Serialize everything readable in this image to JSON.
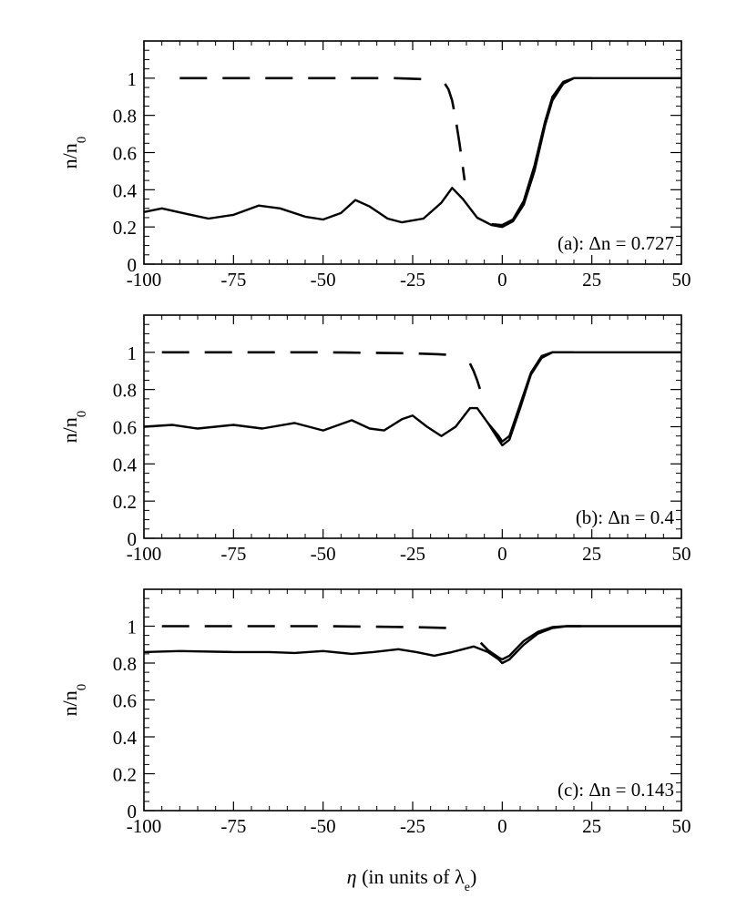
{
  "chart_data": [
    {
      "type": "line",
      "panel_label": "(a):",
      "delta_label": "Δn = 0.727",
      "ylabel": {
        "main": "n/n",
        "sub": "0"
      },
      "xlim": [
        -100,
        50
      ],
      "ylim": [
        0,
        1.2
      ],
      "xticks": [
        -100,
        -75,
        -50,
        -25,
        0,
        25,
        50
      ],
      "xtick_labels": [
        "-100",
        "-75",
        "-50",
        "-25",
        "0",
        "25",
        "50"
      ],
      "yticks": [
        0,
        0.2,
        0.4,
        0.6,
        0.8,
        1
      ],
      "ytick_labels": [
        "0",
        "0.2",
        "0.4",
        "0.6",
        "0.8",
        "1"
      ],
      "grid": false,
      "series": [
        {
          "style": "dashed",
          "segments": [
            [
              [
                -90,
                1.0
              ],
              [
                -50,
                1.0
              ],
              [
                -30,
                1.0
              ],
              [
                -22,
                0.995
              ],
              [
                -19,
                0.99
              ]
            ],
            [
              [
                -16,
                0.97
              ],
              [
                -15,
                0.94
              ],
              [
                -14,
                0.88
              ],
              [
                -13,
                0.78
              ],
              [
                -12,
                0.66
              ],
              [
                -11,
                0.52
              ],
              [
                -10.5,
                0.45
              ]
            ]
          ]
        },
        {
          "style": "solid",
          "points": [
            [
              -100,
              0.28
            ],
            [
              -95,
              0.3
            ],
            [
              -88,
              0.27
            ],
            [
              -82,
              0.245
            ],
            [
              -75,
              0.265
            ],
            [
              -68,
              0.315
            ],
            [
              -62,
              0.3
            ],
            [
              -55,
              0.255
            ],
            [
              -50,
              0.24
            ],
            [
              -45,
              0.275
            ],
            [
              -41,
              0.345
            ],
            [
              -37,
              0.31
            ],
            [
              -32,
              0.245
            ],
            [
              -28,
              0.225
            ],
            [
              -22,
              0.245
            ],
            [
              -17,
              0.33
            ],
            [
              -14,
              0.41
            ],
            [
              -11,
              0.35
            ],
            [
              -7,
              0.25
            ],
            [
              -3,
              0.21
            ],
            [
              0,
              0.2
            ],
            [
              3,
              0.23
            ],
            [
              6,
              0.32
            ],
            [
              9,
              0.5
            ],
            [
              12,
              0.75
            ],
            [
              14,
              0.88
            ],
            [
              17,
              0.97
            ],
            [
              20,
              1.0
            ],
            [
              30,
              1.0
            ],
            [
              50,
              1.0
            ]
          ]
        },
        {
          "style": "solid",
          "points": [
            [
              -3,
              0.215
            ],
            [
              0,
              0.21
            ],
            [
              3,
              0.24
            ],
            [
              6,
              0.34
            ],
            [
              9,
              0.53
            ],
            [
              12,
              0.77
            ],
            [
              14,
              0.9
            ],
            [
              17,
              0.98
            ],
            [
              20,
              1.0
            ],
            [
              25,
              1.0
            ]
          ]
        }
      ]
    },
    {
      "type": "line",
      "panel_label": "(b):",
      "delta_label": "Δn = 0.4",
      "ylabel": {
        "main": "n/n",
        "sub": "0"
      },
      "xlim": [
        -100,
        50
      ],
      "ylim": [
        0,
        1.2
      ],
      "xticks": [
        -100,
        -75,
        -50,
        -25,
        0,
        25,
        50
      ],
      "xtick_labels": [
        "-100",
        "-75",
        "-50",
        "-25",
        "0",
        "25",
        "50"
      ],
      "yticks": [
        0,
        0.2,
        0.4,
        0.6,
        0.8,
        1
      ],
      "ytick_labels": [
        "0",
        "0.2",
        "0.4",
        "0.6",
        "0.8",
        "1"
      ],
      "grid": false,
      "series": [
        {
          "style": "dashed",
          "segments": [
            [
              [
                -95,
                1.0
              ],
              [
                -50,
                1.0
              ],
              [
                -25,
                0.995
              ],
              [
                -18,
                0.99
              ],
              [
                -14,
                0.985
              ]
            ],
            [
              [
                -9,
                0.94
              ],
              [
                -8,
                0.9
              ],
              [
                -7,
                0.85
              ],
              [
                -6,
                0.79
              ]
            ]
          ]
        },
        {
          "style": "solid",
          "points": [
            [
              -100,
              0.6
            ],
            [
              -92,
              0.61
            ],
            [
              -85,
              0.59
            ],
            [
              -75,
              0.61
            ],
            [
              -67,
              0.59
            ],
            [
              -58,
              0.62
            ],
            [
              -50,
              0.58
            ],
            [
              -42,
              0.635
            ],
            [
              -37,
              0.59
            ],
            [
              -33,
              0.58
            ],
            [
              -28,
              0.64
            ],
            [
              -25,
              0.66
            ],
            [
              -21,
              0.6
            ],
            [
              -17,
              0.55
            ],
            [
              -13,
              0.6
            ],
            [
              -9,
              0.7
            ],
            [
              -7,
              0.7
            ],
            [
              -4,
              0.62
            ],
            [
              -1,
              0.53
            ],
            [
              0,
              0.5
            ],
            [
              2,
              0.53
            ],
            [
              5,
              0.7
            ],
            [
              8,
              0.88
            ],
            [
              11,
              0.97
            ],
            [
              14,
              1.0
            ],
            [
              30,
              1.0
            ],
            [
              50,
              1.0
            ]
          ]
        },
        {
          "style": "solid",
          "points": [
            [
              -4,
              0.62
            ],
            [
              -1,
              0.55
            ],
            [
              0,
              0.52
            ],
            [
              2,
              0.55
            ],
            [
              5,
              0.72
            ],
            [
              8,
              0.89
            ],
            [
              11,
              0.98
            ],
            [
              14,
              1.0
            ],
            [
              20,
              1.0
            ]
          ]
        }
      ]
    },
    {
      "type": "line",
      "panel_label": "(c):",
      "delta_label": "Δn = 0.143",
      "ylabel": {
        "main": "n/n",
        "sub": "0"
      },
      "xlim": [
        -100,
        50
      ],
      "ylim": [
        0,
        1.2
      ],
      "xticks": [
        -100,
        -75,
        -50,
        -25,
        0,
        25,
        50
      ],
      "xtick_labels": [
        "-100",
        "-75",
        "-50",
        "-25",
        "0",
        "25",
        "50"
      ],
      "yticks": [
        0,
        0.2,
        0.4,
        0.6,
        0.8,
        1
      ],
      "ytick_labels": [
        "0",
        "0.2",
        "0.4",
        "0.6",
        "0.8",
        "1"
      ],
      "grid": false,
      "series": [
        {
          "style": "dashed",
          "segments": [
            [
              [
                -95,
                1.0
              ],
              [
                -50,
                1.0
              ],
              [
                -25,
                0.995
              ],
              [
                -15,
                0.99
              ],
              [
                -12,
                0.985
              ]
            ],
            [
              [
                -6,
                0.91
              ],
              [
                -5,
                0.89
              ],
              [
                -4,
                0.87
              ]
            ]
          ]
        },
        {
          "style": "solid",
          "points": [
            [
              -100,
              0.86
            ],
            [
              -90,
              0.865
            ],
            [
              -75,
              0.86
            ],
            [
              -65,
              0.86
            ],
            [
              -58,
              0.855
            ],
            [
              -50,
              0.865
            ],
            [
              -42,
              0.85
            ],
            [
              -36,
              0.86
            ],
            [
              -29,
              0.875
            ],
            [
              -24,
              0.86
            ],
            [
              -19,
              0.84
            ],
            [
              -14,
              0.86
            ],
            [
              -8,
              0.89
            ],
            [
              -4,
              0.86
            ],
            [
              -1,
              0.82
            ],
            [
              0,
              0.8
            ],
            [
              2,
              0.82
            ],
            [
              6,
              0.9
            ],
            [
              10,
              0.96
            ],
            [
              14,
              0.99
            ],
            [
              18,
              1.0
            ],
            [
              30,
              1.0
            ],
            [
              50,
              1.0
            ]
          ]
        },
        {
          "style": "solid",
          "points": [
            [
              -4,
              0.87
            ],
            [
              -1,
              0.83
            ],
            [
              0,
              0.82
            ],
            [
              2,
              0.84
            ],
            [
              6,
              0.92
            ],
            [
              10,
              0.97
            ],
            [
              14,
              0.995
            ],
            [
              18,
              1.0
            ],
            [
              22,
              1.0
            ]
          ]
        }
      ]
    }
  ],
  "xlabel": {
    "eta": "η",
    "text": " (in units of λ",
    "sub": "e",
    "close": ")"
  }
}
